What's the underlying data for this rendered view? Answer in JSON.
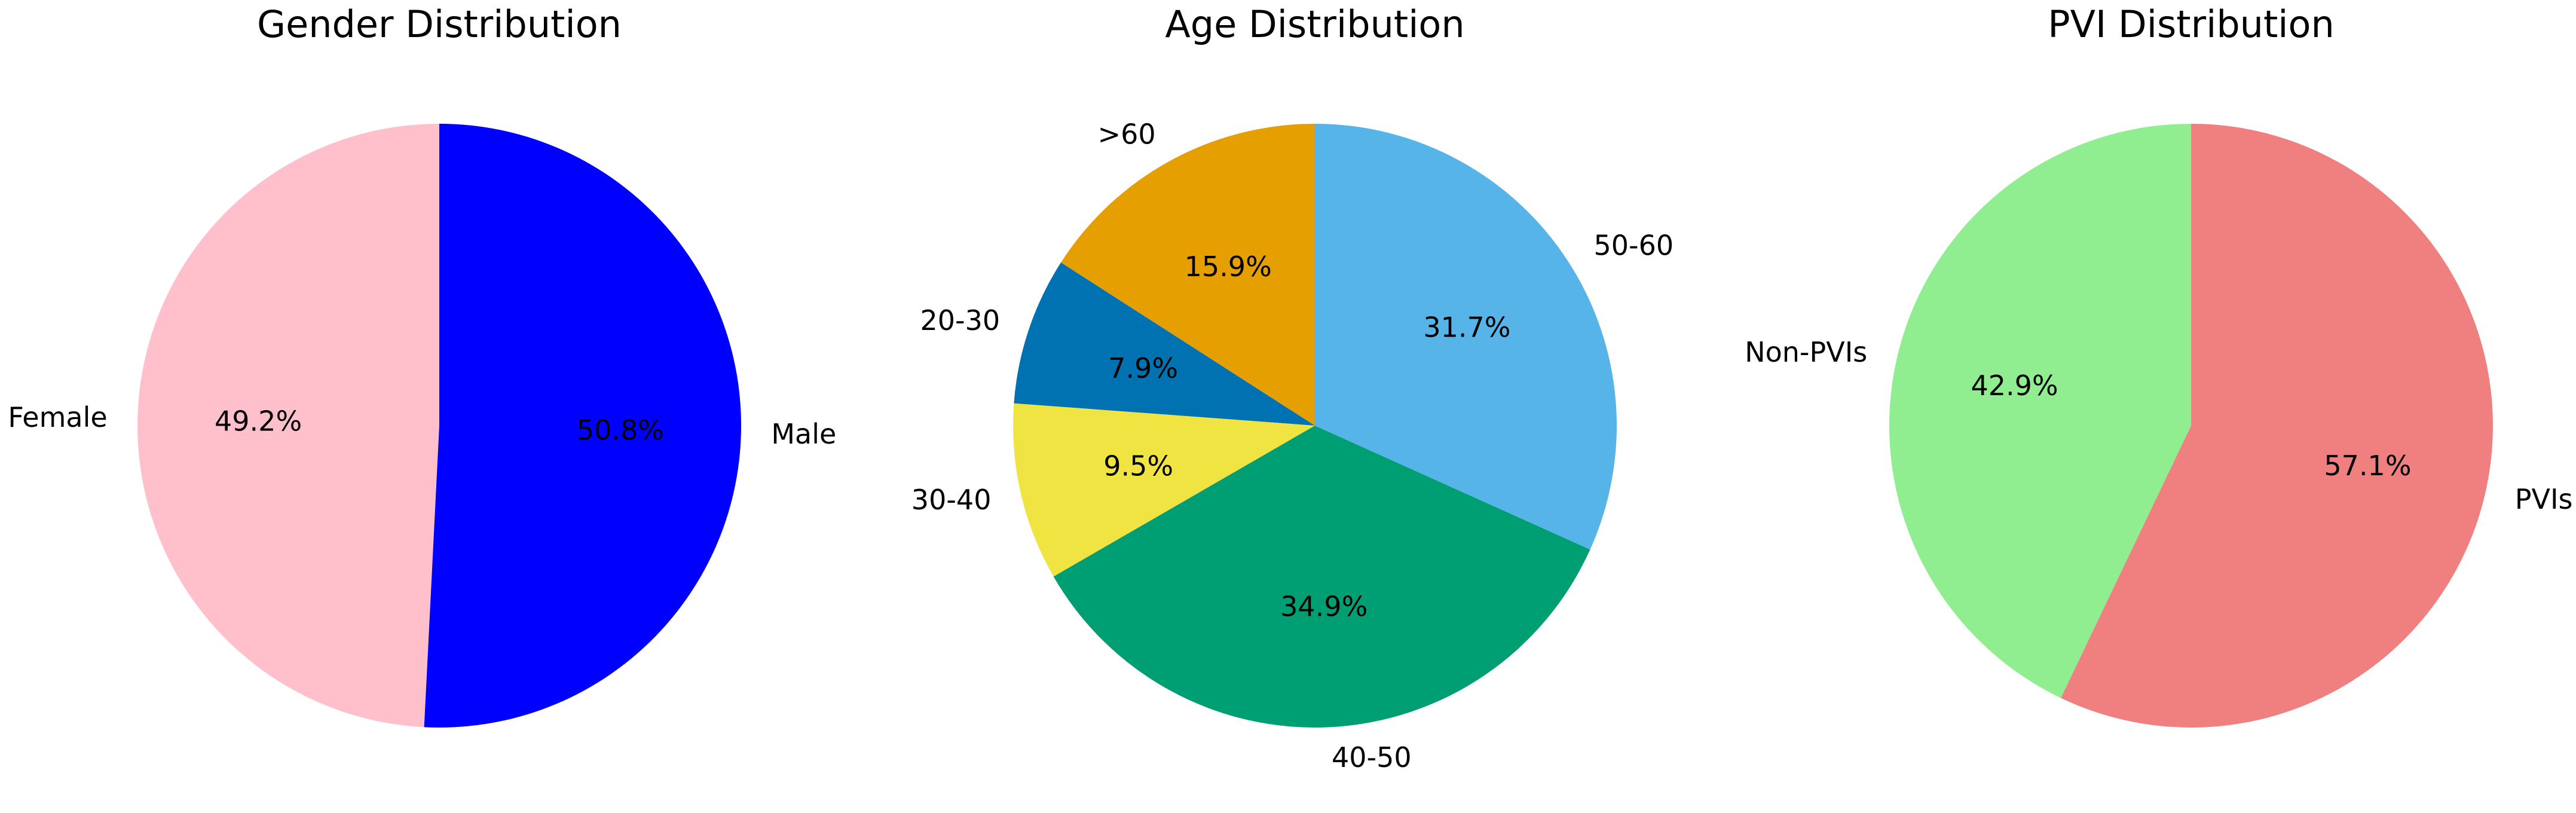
{
  "chart_data": [
    {
      "type": "pie",
      "title": "Gender Distribution",
      "categories": [
        "Female",
        "Male"
      ],
      "values": [
        49.2,
        50.8
      ],
      "percent_labels": [
        "49.2%",
        "50.8%"
      ],
      "colors": [
        "#ffc0cb",
        "#0000ff"
      ],
      "start_angle_deg": 90,
      "direction": "counterclockwise"
    },
    {
      "type": "pie",
      "title": "Age Distribution",
      "categories": [
        ">60",
        "20-30",
        "30-40",
        "40-50",
        "50-60"
      ],
      "values": [
        15.9,
        7.9,
        9.5,
        34.9,
        31.7
      ],
      "percent_labels": [
        "15.9%",
        "7.9%",
        "9.5%",
        "34.9%",
        "31.7%"
      ],
      "colors": [
        "#e69f00",
        "#0072b2",
        "#f0e442",
        "#009e73",
        "#56b4e9"
      ],
      "start_angle_deg": 90,
      "direction": "counterclockwise"
    },
    {
      "type": "pie",
      "title": "PVI Distribution",
      "categories": [
        "Non-PVIs",
        "PVIs"
      ],
      "values": [
        42.9,
        57.1
      ],
      "percent_labels": [
        "42.9%",
        "57.1%"
      ],
      "colors": [
        "#90ee90",
        "#f08080"
      ],
      "start_angle_deg": 90,
      "direction": "counterclockwise"
    }
  ]
}
